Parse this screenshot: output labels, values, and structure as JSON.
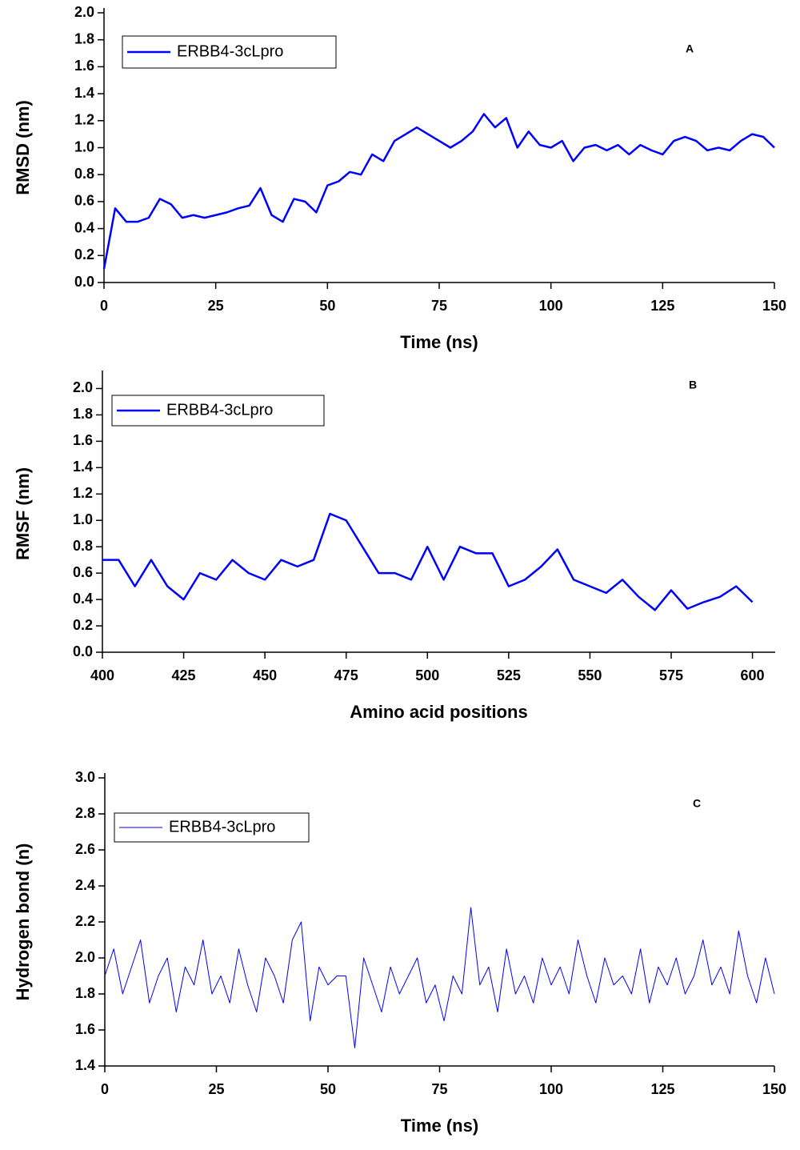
{
  "chart_data": [
    {
      "type": "line",
      "xlabel": "Time (ns)",
      "ylabel": "RMSD (nm)",
      "annotation": "A",
      "x": [
        0,
        2.5,
        5,
        7.5,
        10,
        12.5,
        15,
        17.5,
        20,
        22.5,
        25,
        27.5,
        30,
        32.5,
        35,
        37.5,
        40,
        42.5,
        45,
        47.5,
        50,
        52.5,
        55,
        57.5,
        60,
        62.5,
        65,
        67.5,
        70,
        72.5,
        75,
        77.5,
        80,
        82.5,
        85,
        87.5,
        90,
        92.5,
        95,
        97.5,
        100,
        102.5,
        105,
        107.5,
        110,
        112.5,
        115,
        117.5,
        120,
        122.5,
        125,
        127.5,
        130,
        132.5,
        135,
        137.5,
        140,
        142.5,
        145,
        147.5,
        150
      ],
      "series": [
        {
          "name": "ERBB4-3cLpro",
          "color": "#0000ff",
          "values": [
            0.1,
            0.55,
            0.45,
            0.45,
            0.48,
            0.62,
            0.58,
            0.48,
            0.5,
            0.48,
            0.5,
            0.52,
            0.55,
            0.57,
            0.7,
            0.5,
            0.45,
            0.62,
            0.6,
            0.52,
            0.72,
            0.75,
            0.82,
            0.8,
            0.95,
            0.9,
            1.05,
            1.1,
            1.15,
            1.1,
            1.05,
            1.0,
            1.05,
            1.12,
            1.25,
            1.15,
            1.22,
            1.0,
            1.12,
            1.02,
            1.0,
            1.05,
            0.9,
            1.0,
            1.02,
            0.98,
            1.02,
            0.95,
            1.02,
            0.98,
            0.95,
            1.05,
            1.08,
            1.05,
            0.98,
            1.0,
            0.98,
            1.05,
            1.1,
            1.08,
            1.0
          ]
        }
      ],
      "xlim": [
        0,
        150
      ],
      "ylim": [
        0,
        2.0
      ],
      "xticks": [
        0,
        25,
        50,
        75,
        100,
        125,
        150
      ],
      "yticks": [
        {
          "value": 0,
          "label": "0.0"
        },
        0.2,
        0.4,
        0.6,
        0.8,
        {
          "value": 1,
          "label": "1.0"
        },
        1.2,
        1.4,
        1.6,
        1.8,
        {
          "value": 2,
          "label": "2.0"
        }
      ]
    },
    {
      "type": "line",
      "xlabel": "Amino acid positions",
      "ylabel": "RMSF (nm)",
      "annotation": "B",
      "x": [
        400,
        405,
        410,
        415,
        420,
        425,
        430,
        435,
        440,
        445,
        450,
        455,
        460,
        465,
        470,
        475,
        480,
        485,
        490,
        495,
        500,
        505,
        510,
        515,
        520,
        525,
        530,
        535,
        540,
        545,
        550,
        555,
        560,
        565,
        570,
        575,
        580,
        585,
        590,
        595,
        600
      ],
      "series": [
        {
          "name": "ERBB4-3cLpro",
          "color": "#0000ff",
          "values": [
            0.7,
            0.7,
            0.5,
            0.7,
            0.5,
            0.4,
            0.6,
            0.55,
            0.7,
            0.6,
            0.55,
            0.7,
            0.65,
            0.7,
            1.05,
            1.0,
            0.8,
            0.6,
            0.6,
            0.55,
            0.8,
            0.55,
            0.8,
            0.75,
            0.75,
            0.5,
            0.55,
            0.65,
            0.78,
            0.55,
            0.5,
            0.45,
            0.55,
            0.42,
            0.32,
            0.47,
            0.33,
            0.38,
            0.42,
            0.5,
            0.38
          ]
        }
      ],
      "xlim": [
        400,
        607
      ],
      "ylim": [
        0,
        2.1
      ],
      "xticks": [
        400,
        425,
        450,
        475,
        500,
        525,
        550,
        575,
        600
      ],
      "yticks": [
        {
          "value": 0,
          "label": "0.0"
        },
        0.2,
        0.4,
        0.6,
        0.8,
        {
          "value": 1,
          "label": "1.0"
        },
        1.2,
        1.4,
        1.6,
        1.8,
        {
          "value": 2,
          "label": "2.0"
        }
      ]
    },
    {
      "type": "line",
      "xlabel": "Time (ns)",
      "ylabel": "Hydrogen bond (n)",
      "annotation": "C",
      "x": [
        0,
        2,
        4,
        6,
        8,
        10,
        12,
        14,
        16,
        18,
        20,
        22,
        24,
        26,
        28,
        30,
        32,
        34,
        36,
        38,
        40,
        42,
        44,
        46,
        48,
        50,
        52,
        54,
        56,
        58,
        60,
        62,
        64,
        66,
        68,
        70,
        72,
        74,
        76,
        78,
        80,
        82,
        84,
        86,
        88,
        90,
        92,
        94,
        96,
        98,
        100,
        102,
        104,
        106,
        108,
        110,
        112,
        114,
        116,
        118,
        120,
        122,
        124,
        126,
        128,
        130,
        132,
        134,
        136,
        138,
        140,
        142,
        144,
        146,
        148,
        150
      ],
      "series": [
        {
          "name": "ERBB4-3cLpro",
          "color": "#0000ff",
          "values": [
            1.9,
            2.05,
            1.8,
            1.95,
            2.1,
            1.75,
            1.9,
            2.0,
            1.7,
            1.95,
            1.85,
            2.1,
            1.8,
            1.9,
            1.75,
            2.05,
            1.85,
            1.7,
            2.0,
            1.9,
            1.75,
            2.1,
            2.2,
            1.65,
            1.95,
            1.85,
            1.9,
            1.9,
            1.5,
            2.0,
            1.85,
            1.7,
            1.95,
            1.8,
            1.9,
            2.0,
            1.75,
            1.85,
            1.65,
            1.9,
            1.8,
            2.28,
            1.85,
            1.95,
            1.7,
            2.05,
            1.8,
            1.9,
            1.75,
            2.0,
            1.85,
            1.95,
            1.8,
            2.1,
            1.9,
            1.75,
            2.0,
            1.85,
            1.9,
            1.8,
            2.05,
            1.75,
            1.95,
            1.85,
            2.0,
            1.8,
            1.9,
            2.1,
            1.85,
            1.95,
            1.8,
            2.15,
            1.9,
            1.75,
            2.0,
            1.8
          ]
        }
      ],
      "xlim": [
        0,
        150
      ],
      "ylim": [
        1.4,
        3.0
      ],
      "xticks": [
        0,
        25,
        50,
        75,
        100,
        125,
        150
      ],
      "yticks": [
        1.4,
        1.6,
        1.8,
        {
          "value": 2,
          "label": "2.0"
        },
        2.2,
        2.4,
        2.6,
        2.8,
        {
          "value": 3,
          "label": "3.0"
        }
      ]
    }
  ]
}
